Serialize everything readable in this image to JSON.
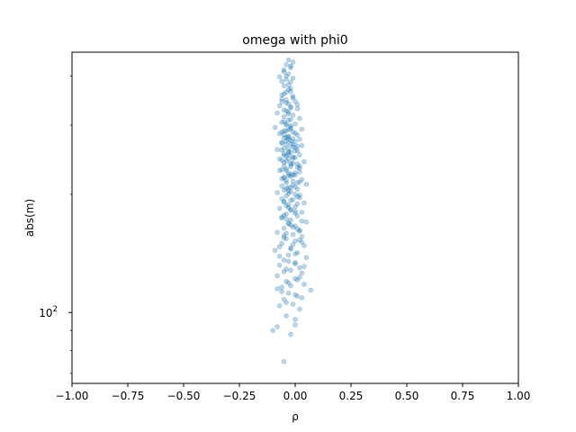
{
  "chart_data": {
    "type": "scatter",
    "title": "omega with phi0",
    "xlabel": "ρ",
    "ylabel": "abs(m)",
    "xlim": [
      -1.0,
      1.0
    ],
    "ylim": [
      66,
      460
    ],
    "y_scale": "log",
    "x_ticks": [
      "−1.00",
      "−0.75",
      "−0.50",
      "−0.25",
      "0.00",
      "0.25",
      "0.50",
      "0.75",
      "1.00"
    ],
    "x_tick_values": [
      -1.0,
      -0.75,
      -0.5,
      -0.25,
      0.0,
      0.25,
      0.5,
      0.75,
      1.0
    ],
    "y_major_ticks": [
      {
        "value": 100,
        "label_base": "10",
        "label_exp": "2"
      }
    ],
    "y_minor_ticks": [
      70,
      80,
      90,
      200,
      300,
      400
    ],
    "marker_color": "#1f77b4",
    "marker_alpha": 0.3,
    "grid": false,
    "legend": "none",
    "series": [
      {
        "points": [
          [
            -0.04,
            400
          ],
          [
            -0.03,
            380
          ],
          [
            -0.02,
            365
          ],
          [
            -0.05,
            360
          ],
          [
            -0.01,
            355
          ],
          [
            -0.06,
            350
          ],
          [
            0.0,
            345
          ],
          [
            -0.03,
            340
          ],
          [
            -0.07,
            336
          ],
          [
            -0.02,
            332
          ],
          [
            0.01,
            330
          ],
          [
            -0.04,
            326
          ],
          [
            -0.08,
            322
          ],
          [
            -0.01,
            318
          ],
          [
            -0.05,
            315
          ],
          [
            0.02,
            312
          ],
          [
            -0.03,
            309
          ],
          [
            -0.06,
            305
          ],
          [
            0.0,
            302
          ],
          [
            -0.02,
            299
          ],
          [
            -0.09,
            296
          ],
          [
            0.03,
            293
          ],
          [
            -0.04,
            290
          ],
          [
            -0.01,
            288
          ],
          [
            -0.07,
            285
          ],
          [
            0.01,
            283
          ],
          [
            -0.03,
            281
          ],
          [
            -0.05,
            278
          ],
          [
            0.02,
            276
          ],
          [
            -0.02,
            274
          ],
          [
            0.0,
            272
          ],
          [
            -0.06,
            270
          ],
          [
            -0.04,
            268
          ],
          [
            0.03,
            266
          ],
          [
            -0.01,
            264
          ],
          [
            -0.03,
            262
          ],
          [
            -0.08,
            260
          ],
          [
            0.01,
            258
          ],
          [
            -0.02,
            256
          ],
          [
            -0.05,
            254
          ],
          [
            0.02,
            252
          ],
          [
            -0.04,
            250
          ],
          [
            0.0,
            248
          ],
          [
            -0.03,
            246
          ],
          [
            -0.06,
            244
          ],
          [
            0.04,
            242
          ],
          [
            -0.01,
            240
          ],
          [
            -0.02,
            238
          ],
          [
            -0.05,
            236
          ],
          [
            0.01,
            234
          ],
          [
            -0.04,
            232
          ],
          [
            -0.07,
            230
          ],
          [
            0.02,
            228
          ],
          [
            -0.03,
            226
          ],
          [
            0.0,
            224
          ],
          [
            -0.02,
            222
          ],
          [
            -0.05,
            220
          ],
          [
            0.03,
            218
          ],
          [
            -0.01,
            216
          ],
          [
            -0.04,
            214
          ],
          [
            0.05,
            212
          ],
          [
            -0.06,
            210
          ],
          [
            -0.02,
            208
          ],
          [
            0.01,
            206
          ],
          [
            -0.03,
            204
          ],
          [
            -0.08,
            202
          ],
          [
            0.0,
            200
          ],
          [
            -0.04,
            198
          ],
          [
            0.02,
            196
          ],
          [
            -0.01,
            194
          ],
          [
            -0.05,
            192
          ],
          [
            0.04,
            190
          ],
          [
            -0.03,
            188
          ],
          [
            0.0,
            186
          ],
          [
            -0.07,
            184
          ],
          [
            -0.02,
            182
          ],
          [
            0.03,
            180
          ],
          [
            -0.04,
            178
          ],
          [
            0.01,
            176
          ],
          [
            -0.06,
            174
          ],
          [
            -0.02,
            172
          ],
          [
            0.05,
            170
          ],
          [
            -0.03,
            168
          ],
          [
            0.0,
            166
          ],
          [
            -0.05,
            164
          ],
          [
            0.02,
            162
          ],
          [
            -0.08,
            160
          ],
          [
            -0.01,
            158
          ],
          [
            0.03,
            156
          ],
          [
            -0.04,
            154
          ],
          [
            0.0,
            152
          ],
          [
            -0.06,
            150
          ],
          [
            0.04,
            148
          ],
          [
            -0.02,
            146
          ],
          [
            -0.09,
            144
          ],
          [
            0.01,
            142
          ],
          [
            -0.03,
            140
          ],
          [
            0.05,
            138
          ],
          [
            -0.05,
            136
          ],
          [
            0.0,
            134
          ],
          [
            -0.07,
            132
          ],
          [
            0.02,
            130
          ],
          [
            -0.02,
            128
          ],
          [
            0.03,
            126
          ],
          [
            -0.08,
            124
          ],
          [
            0.0,
            122
          ],
          [
            -0.04,
            120
          ],
          [
            0.04,
            118
          ],
          [
            -0.06,
            116
          ],
          [
            0.07,
            114
          ],
          [
            -0.03,
            112
          ],
          [
            0.01,
            110
          ],
          [
            -0.05,
            108
          ],
          [
            -0.01,
            105
          ],
          [
            -0.07,
            104
          ],
          [
            0.02,
            102
          ],
          [
            -0.04,
            98
          ],
          [
            0.0,
            93
          ],
          [
            -0.1,
            90
          ],
          [
            -0.02,
            88
          ],
          [
            -0.05,
            75
          ],
          [
            -0.02,
            420
          ],
          [
            -0.04,
            428
          ],
          [
            -0.03,
            440
          ],
          [
            -0.05,
            410
          ],
          [
            -0.01,
            395
          ],
          [
            -0.06,
            388
          ],
          [
            -0.02,
            372
          ],
          [
            -0.04,
            348
          ],
          [
            0.01,
            338
          ],
          [
            -0.03,
            324
          ],
          [
            -0.05,
            306
          ],
          [
            -0.02,
            294
          ],
          [
            0.0,
            286
          ],
          [
            -0.04,
            279
          ],
          [
            -0.06,
            271
          ],
          [
            0.01,
            265
          ],
          [
            -0.03,
            257
          ],
          [
            -0.01,
            249
          ],
          [
            -0.05,
            241
          ],
          [
            0.02,
            233
          ],
          [
            -0.02,
            225
          ],
          [
            -0.04,
            217
          ],
          [
            0.0,
            209
          ],
          [
            -0.03,
            201
          ],
          [
            -0.06,
            195
          ],
          [
            0.01,
            189
          ],
          [
            -0.02,
            183
          ],
          [
            -0.05,
            177
          ],
          [
            0.03,
            171
          ],
          [
            -0.01,
            165
          ],
          [
            -0.04,
            159
          ],
          [
            0.02,
            153
          ],
          [
            -0.07,
            147
          ],
          [
            0.0,
            141
          ],
          [
            -0.03,
            135
          ],
          [
            0.04,
            131
          ],
          [
            -0.05,
            127
          ],
          [
            0.01,
            121
          ],
          [
            -0.02,
            117
          ],
          [
            -0.06,
            113
          ],
          [
            0.03,
            109
          ],
          [
            -0.04,
            106
          ],
          [
            -0.08,
            92
          ],
          [
            0.0,
            96
          ],
          [
            -0.05,
            290
          ],
          [
            -0.02,
            296
          ],
          [
            -0.04,
            302
          ],
          [
            -0.06,
            288
          ],
          [
            -0.03,
            276
          ],
          [
            -0.01,
            268
          ],
          [
            -0.05,
            262
          ],
          [
            0.0,
            258
          ],
          [
            -0.03,
            252
          ],
          [
            -0.07,
            246
          ],
          [
            -0.02,
            240
          ],
          [
            0.02,
            236
          ],
          [
            -0.04,
            230
          ],
          [
            -0.01,
            224
          ],
          [
            -0.06,
            219
          ],
          [
            0.01,
            214
          ],
          [
            -0.03,
            208
          ],
          [
            -0.05,
            205
          ],
          [
            0.02,
            199
          ],
          [
            -0.02,
            193
          ],
          [
            -0.04,
            187
          ],
          [
            0.0,
            181
          ],
          [
            -0.06,
            175
          ],
          [
            -0.03,
            169
          ],
          [
            0.01,
            163
          ],
          [
            -0.05,
            157
          ],
          [
            0.03,
            151
          ],
          [
            -0.02,
            145
          ],
          [
            -0.07,
            139
          ],
          [
            0.0,
            133
          ],
          [
            -0.04,
            129
          ],
          [
            0.02,
            123
          ],
          [
            -0.03,
            119
          ],
          [
            -0.08,
            115
          ],
          [
            0.0,
            111
          ],
          [
            -0.05,
            284
          ],
          [
            -0.03,
            280
          ],
          [
            -0.01,
            277
          ],
          [
            -0.04,
            273
          ],
          [
            -0.02,
            269
          ],
          [
            0.0,
            263
          ],
          [
            -0.06,
            259
          ],
          [
            -0.03,
            255
          ],
          [
            -0.05,
            251
          ],
          [
            -0.01,
            247
          ],
          [
            -0.04,
            243
          ],
          [
            0.01,
            239
          ],
          [
            -0.02,
            235
          ],
          [
            -0.06,
            231
          ],
          [
            0.0,
            227
          ],
          [
            -0.03,
            223
          ],
          [
            -0.05,
            221
          ],
          [
            0.02,
            215
          ],
          [
            -0.01,
            211
          ],
          [
            -0.04,
            207
          ],
          [
            -0.02,
            203
          ],
          [
            0.01,
            197
          ],
          [
            -0.05,
            191
          ],
          [
            -0.03,
            185
          ],
          [
            0.0,
            179
          ],
          [
            -0.04,
            173
          ],
          [
            -0.02,
            167
          ],
          [
            0.02,
            161
          ],
          [
            -0.05,
            155
          ],
          [
            -0.01,
            149
          ],
          [
            -0.03,
            320
          ],
          [
            -0.05,
            328
          ],
          [
            -0.02,
            334
          ],
          [
            -0.04,
            342
          ],
          [
            -0.01,
            352
          ],
          [
            -0.06,
            358
          ],
          [
            -0.03,
            370
          ],
          [
            -0.05,
            378
          ],
          [
            -0.02,
            386
          ],
          [
            -0.04,
            392
          ],
          [
            -0.07,
            398
          ],
          [
            -0.03,
            405
          ],
          [
            -0.05,
            415
          ],
          [
            -0.02,
            424
          ],
          [
            -0.01,
            434
          ],
          [
            -0.04,
            364
          ],
          [
            -0.06,
            344
          ],
          [
            -0.02,
            310
          ],
          [
            -0.04,
            300
          ],
          [
            -0.03,
            292
          ]
        ]
      }
    ]
  }
}
